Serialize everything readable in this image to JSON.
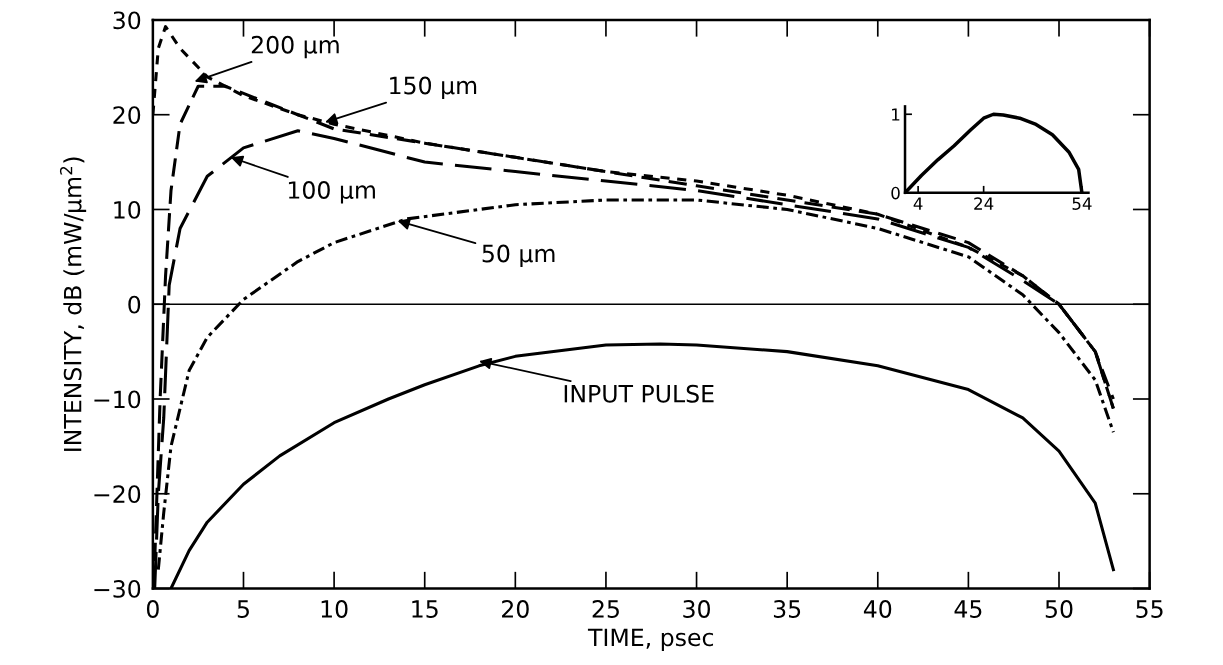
{
  "chart_data": [
    {
      "type": "line",
      "xlabel": "TIME, psec",
      "ylabel": "INTENSITY, dB (mW/µm$^{2}$)",
      "xlim": [
        0,
        55
      ],
      "xticks": [
        0,
        5,
        10,
        15,
        20,
        25,
        30,
        35,
        40,
        45,
        50,
        55
      ],
      "ylim": [
        -30,
        30
      ],
      "yticks": [
        {
          "value": -30,
          "label": "−30"
        },
        {
          "value": -20,
          "label": "−20"
        },
        {
          "value": -10,
          "label": "−10"
        },
        0,
        10,
        20,
        30
      ],
      "grid": false,
      "legend": false,
      "marker": "none",
      "ref_lines": [
        {
          "axis": "y",
          "value": 0,
          "color": "#000000"
        }
      ],
      "series": [
        {
          "color": "#000000",
          "line_style": "solid",
          "x": [
            1,
            2,
            3,
            5,
            7,
            10,
            13,
            15,
            18,
            20,
            25,
            28,
            30,
            35,
            40,
            45,
            48,
            50,
            52,
            53
          ],
          "values": [
            -30,
            -26,
            -23,
            -19,
            -16,
            -12.5,
            -10,
            -8.5,
            -6.5,
            -5.5,
            -4.3,
            -4.2,
            -4.3,
            -5,
            -6.5,
            -9,
            -12,
            -15.5,
            -21,
            -28
          ]
        },
        {
          "color": "#000000",
          "line_style": "dashdot",
          "x": [
            0.3,
            0.6,
            1,
            2,
            3,
            5,
            8,
            10,
            14,
            20,
            25,
            30,
            35,
            40,
            45,
            48,
            50,
            52,
            53
          ],
          "values": [
            -28,
            -22,
            -15,
            -7,
            -3.5,
            0.5,
            4.5,
            6.5,
            9,
            10.5,
            11,
            11,
            10,
            8,
            5,
            1,
            -3,
            -8,
            -13.5
          ]
        },
        {
          "color": "#000000",
          "line_style": "longdash",
          "x": [
            0.1,
            0.3,
            0.6,
            0.9,
            1.5,
            3,
            5,
            8,
            10,
            15,
            20,
            25,
            30,
            35,
            40,
            45,
            48,
            50,
            52,
            53
          ],
          "values": [
            -30,
            -20,
            -12,
            2,
            8,
            13.5,
            16.5,
            18.3,
            17.5,
            15,
            14,
            13,
            12,
            10.5,
            9,
            6,
            2.5,
            0,
            -5,
            -11
          ]
        },
        {
          "color": "#000000",
          "line_style": "dashed",
          "x": [
            0.05,
            0.4,
            0.7,
            1,
            1.5,
            2.5,
            4,
            8,
            10,
            15,
            20,
            25,
            30,
            35,
            40,
            45,
            48,
            50,
            52,
            53
          ],
          "values": [
            -30,
            -10,
            3,
            12,
            19,
            23,
            23,
            20,
            18.5,
            17,
            15.5,
            14,
            12.5,
            11,
            9.5,
            6.5,
            3,
            0,
            -5,
            -10
          ]
        },
        {
          "color": "#000000",
          "line_style": "dotted",
          "x": [
            0,
            0.3,
            0.7,
            1.5,
            3,
            5,
            8,
            10,
            15,
            20,
            25,
            30,
            35,
            40,
            45,
            48,
            50,
            52,
            53
          ],
          "values": [
            20,
            27,
            29.3,
            27,
            24,
            22,
            20,
            19,
            17,
            15.5,
            14,
            13,
            11.5,
            9.5,
            6,
            3,
            0,
            -5,
            -11
          ]
        }
      ],
      "annotations": [
        {
          "text": "INPUT PULSE",
          "x": 18,
          "y": -6
        },
        {
          "text": "50 µm",
          "x": 13.5,
          "y": 8.8
        },
        {
          "text": "100 µm",
          "x": 4.3,
          "y": 15.5
        },
        {
          "text": "150 µm",
          "x": 9.5,
          "y": 19.2
        },
        {
          "text": "200 µm",
          "x": 2.3,
          "y": 23.5
        }
      ]
    },
    {
      "type": "line",
      "xlim": [
        0,
        56
      ],
      "xticks": [
        4,
        24,
        54
      ],
      "ylim": [
        0,
        1.1
      ],
      "yticks": [
        0,
        1
      ],
      "grid": false,
      "legend": false,
      "marker": "none",
      "series": [
        {
          "color": "#000000",
          "line_style": "solid",
          "x": [
            0,
            5,
            10,
            15,
            20,
            24,
            27,
            30,
            35,
            40,
            45,
            50,
            53,
            54
          ],
          "values": [
            0,
            0.22,
            0.42,
            0.6,
            0.8,
            0.95,
            1,
            0.99,
            0.95,
            0.87,
            0.74,
            0.52,
            0.3,
            0
          ]
        }
      ]
    }
  ]
}
